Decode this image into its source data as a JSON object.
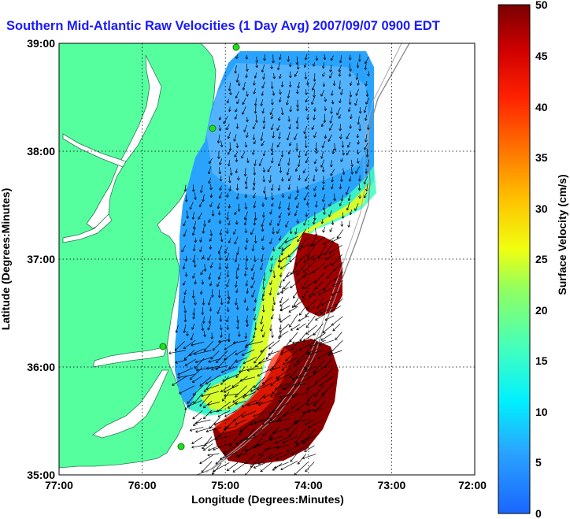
{
  "title": "Southern Mid-Atlantic Raw Velocities (1 Day Avg) 2007/09/07 0900 EDT",
  "x_axis": {
    "label": "Longitude (Degrees:Minutes)",
    "ticks": [
      "77:00",
      "76:00",
      "75:00",
      "74:00",
      "73:00",
      "72:00"
    ]
  },
  "y_axis": {
    "label": "Latitude (Degrees:Minutes)",
    "ticks": [
      "39:00",
      "38:00",
      "37:00",
      "36:00",
      "35:00"
    ]
  },
  "colorbar": {
    "label": "Surface Velocity (cm/s)",
    "ticks": [
      "0",
      "5",
      "10",
      "15",
      "20",
      "25",
      "30",
      "35",
      "40",
      "45",
      "50"
    ],
    "min": 0,
    "max": 50
  },
  "map": {
    "extent_lon": [
      -77,
      -72
    ],
    "extent_lat": [
      35,
      39
    ],
    "land_color": "#55ff9e",
    "grid": "dotted",
    "vectors": "black arrows"
  }
}
